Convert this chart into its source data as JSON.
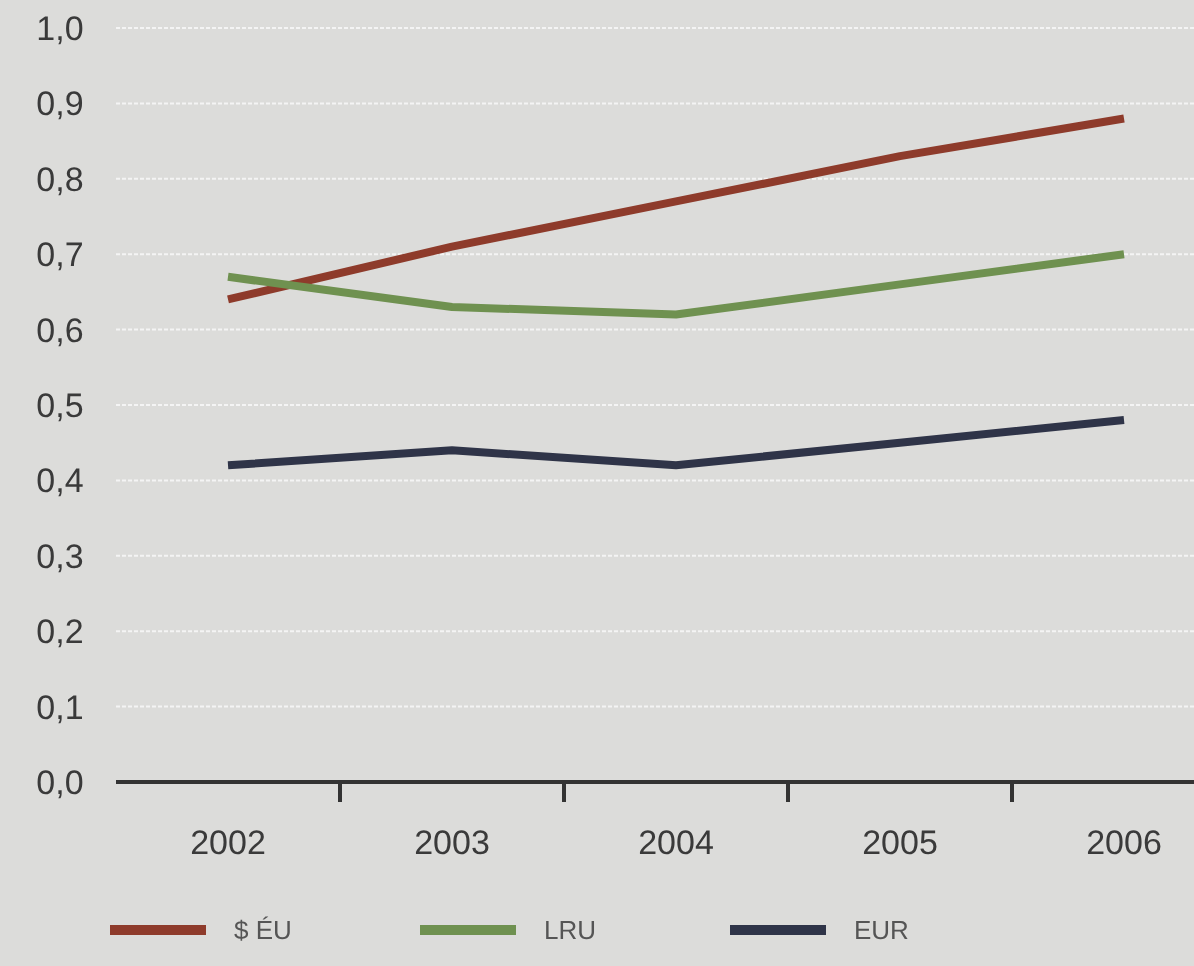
{
  "chart_data": {
    "type": "line",
    "categories": [
      "2002",
      "2003",
      "2004",
      "2005",
      "2006"
    ],
    "series": [
      {
        "name": "$ ÉU",
        "color": "#8e3b2b",
        "values": [
          0.64,
          0.71,
          0.77,
          0.83,
          0.88
        ]
      },
      {
        "name": "LRU",
        "color": "#6f9150",
        "values": [
          0.67,
          0.63,
          0.62,
          0.66,
          0.7
        ]
      },
      {
        "name": "EUR",
        "color": "#2f3448",
        "values": [
          0.42,
          0.44,
          0.42,
          0.45,
          0.48
        ]
      }
    ],
    "ylim": [
      0,
      1
    ],
    "yticks": [
      {
        "value": 0,
        "label": "0,0"
      },
      {
        "value": 0.1,
        "label": "0,1"
      },
      {
        "value": 0.2,
        "label": "0,2"
      },
      {
        "value": 0.3,
        "label": "0,3"
      },
      {
        "value": 0.4,
        "label": "0,4"
      },
      {
        "value": 0.5,
        "label": "0,5"
      },
      {
        "value": 0.6,
        "label": "0,6"
      },
      {
        "value": 0.7,
        "label": "0,7"
      },
      {
        "value": 0.8,
        "label": "0,8"
      },
      {
        "value": 0.9,
        "label": "0,9"
      },
      {
        "value": 1,
        "label": "1,0"
      }
    ],
    "grid": "y",
    "legend": "bottom",
    "marker": "none",
    "line_style": "solid"
  }
}
